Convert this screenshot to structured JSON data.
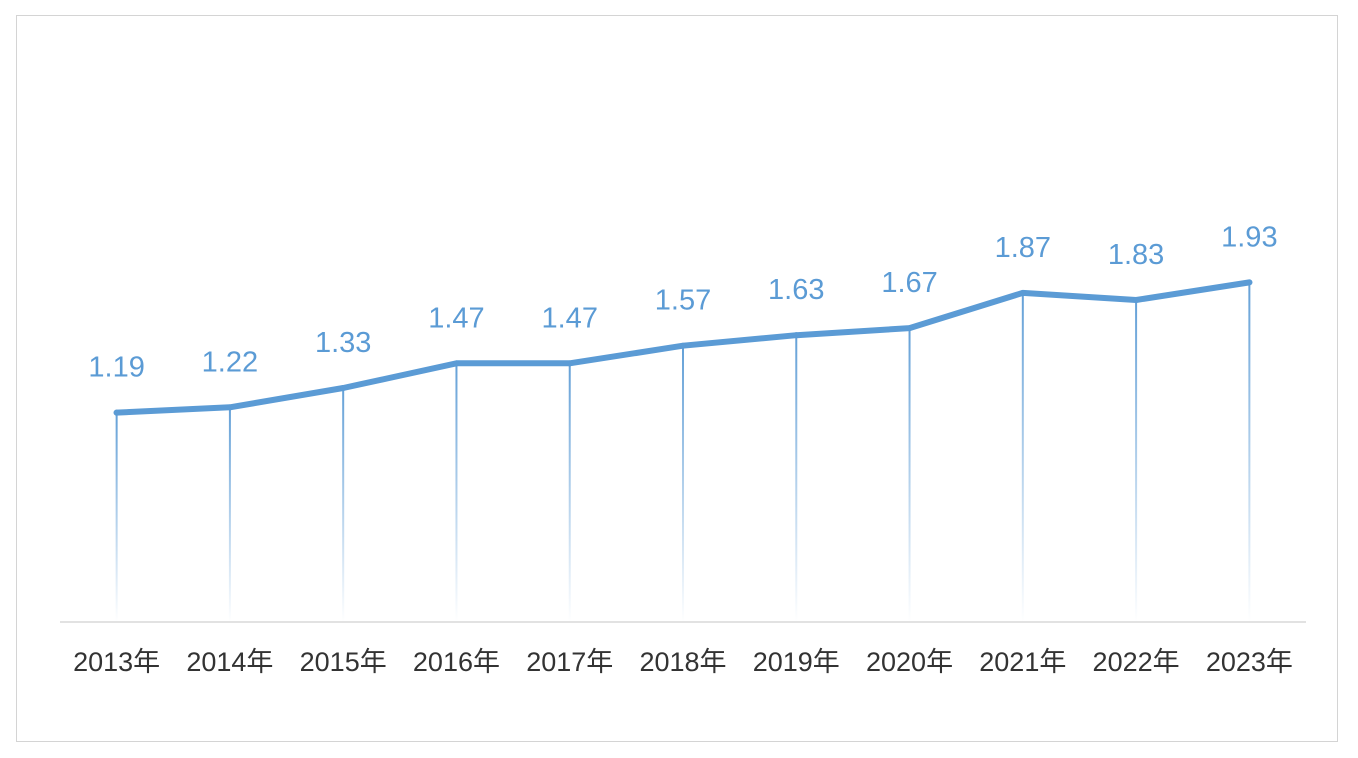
{
  "chart_data": {
    "type": "line",
    "categories": [
      "2013年",
      "2014年",
      "2015年",
      "2016年",
      "2017年",
      "2018年",
      "2019年",
      "2020年",
      "2021年",
      "2022年",
      "2023年"
    ],
    "series": [
      {
        "values": [
          1.19,
          1.22,
          1.33,
          1.47,
          1.47,
          1.57,
          1.63,
          1.67,
          1.87,
          1.83,
          1.93
        ],
        "labels": [
          "1.19",
          "1.22",
          "1.33",
          "1.47",
          "1.47",
          "1.57",
          "1.63",
          "1.67",
          "1.87",
          "1.83",
          "1.93"
        ]
      }
    ],
    "title": "",
    "xlabel": "",
    "ylabel": "",
    "ylim": [
      0,
      2.58
    ],
    "grid": false,
    "legend": "none",
    "data_labels": true,
    "drop_lines": true,
    "colors": {
      "line": "#5b9bd5",
      "label": "#5b9bd5",
      "axis": "#d9d9d9",
      "tick_text": "#333333",
      "frame": "#d4d4d4"
    }
  }
}
